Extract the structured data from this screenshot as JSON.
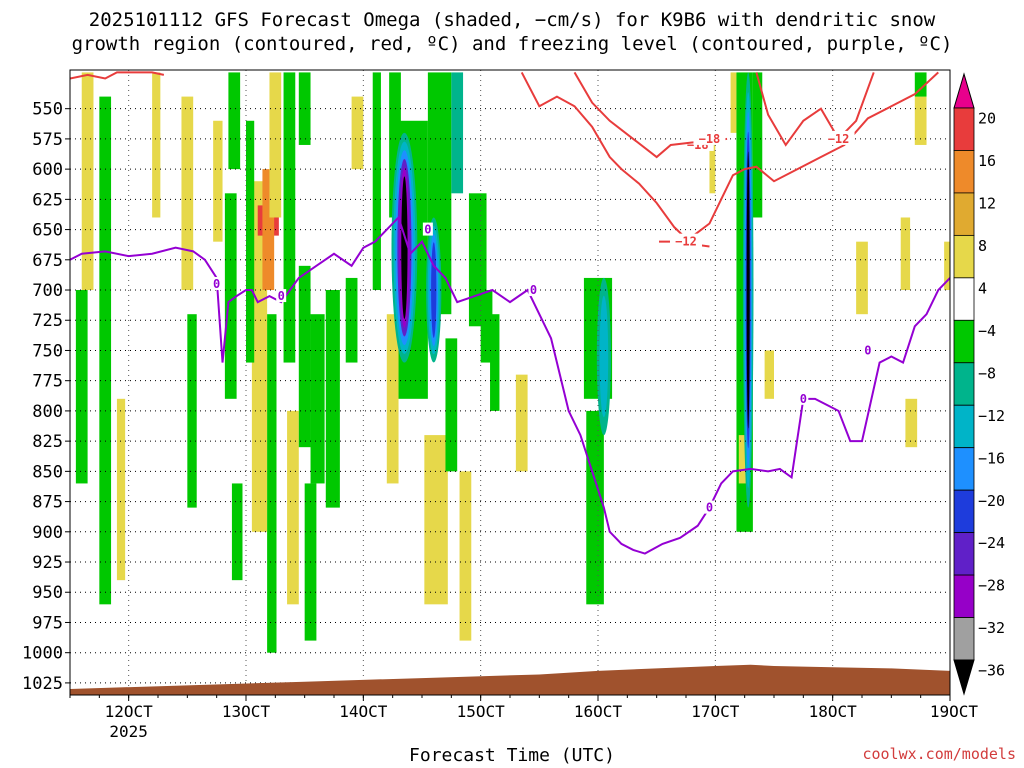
{
  "title_line1": "2025101112 GFS Forecast Omega (shaded, −cm/s) for K9B6 with dendritic snow",
  "title_line2": "growth region (contoured, red, ºC) and freezing level (contoured, purple, ºC)",
  "credit": "coolwx.com/models",
  "chart_data": {
    "type": "heatmap",
    "xlabel": "Forecast Time (UTC)",
    "x_ticks": [
      {
        "label": "12OCT",
        "sublabel": "2025",
        "t": 12
      },
      {
        "label": "13OCT",
        "t": 13
      },
      {
        "label": "14OCT",
        "t": 14
      },
      {
        "label": "15OCT",
        "t": 15
      },
      {
        "label": "16OCT",
        "t": 16
      },
      {
        "label": "17OCT",
        "t": 17
      },
      {
        "label": "18OCT",
        "t": 18
      },
      {
        "label": "19OCT",
        "t": 19
      }
    ],
    "xlim": [
      11.5,
      19
    ],
    "ylabel": "",
    "y_ticks": [
      550,
      575,
      600,
      625,
      650,
      675,
      700,
      725,
      750,
      775,
      800,
      825,
      850,
      875,
      900,
      925,
      950,
      975,
      1000,
      1025
    ],
    "ylim_hpa": [
      518,
      1035
    ],
    "colorbar": {
      "levels": [
        "20",
        "16",
        "12",
        "8",
        "4",
        "−4",
        "−8",
        "−12",
        "−16",
        "−20",
        "−24",
        "−28",
        "−32",
        "−36"
      ],
      "colors": [
        "#e8008c",
        "#e83c3c",
        "#ee8a2a",
        "#e0aa30",
        "#e6d84a",
        "#ffffff",
        "#00c800",
        "#00b48c",
        "#00b4c8",
        "#1e90ff",
        "#1e3cdc",
        "#6020c8",
        "#9600c8",
        "#a0a0a0",
        "#000000"
      ]
    },
    "omega_cells": [
      {
        "t0": 11.55,
        "t1": 11.65,
        "p0": 700,
        "p1": 860,
        "c": "#00c800"
      },
      {
        "t0": 11.6,
        "t1": 11.7,
        "p0": 520,
        "p1": 700,
        "c": "#e6d84a"
      },
      {
        "t0": 11.75,
        "t1": 11.85,
        "p0": 540,
        "p1": 960,
        "c": "#00c800"
      },
      {
        "t0": 11.9,
        "t1": 11.97,
        "p0": 790,
        "p1": 940,
        "c": "#e6d84a"
      },
      {
        "t0": 12.2,
        "t1": 12.27,
        "p0": 520,
        "p1": 640,
        "c": "#e6d84a"
      },
      {
        "t0": 12.45,
        "t1": 12.55,
        "p0": 540,
        "p1": 700,
        "c": "#e6d84a"
      },
      {
        "t0": 12.5,
        "t1": 12.58,
        "p0": 720,
        "p1": 880,
        "c": "#00c800"
      },
      {
        "t0": 12.72,
        "t1": 12.8,
        "p0": 560,
        "p1": 660,
        "c": "#e6d84a"
      },
      {
        "t0": 12.85,
        "t1": 12.95,
        "p0": 520,
        "p1": 600,
        "c": "#00c800"
      },
      {
        "t0": 12.82,
        "t1": 12.92,
        "p0": 620,
        "p1": 790,
        "c": "#00c800"
      },
      {
        "t0": 13.05,
        "t1": 13.18,
        "p0": 610,
        "p1": 900,
        "c": "#e6d84a"
      },
      {
        "t0": 12.88,
        "t1": 12.97,
        "p0": 860,
        "p1": 940,
        "c": "#00c800"
      },
      {
        "t0": 13.0,
        "t1": 13.07,
        "p0": 560,
        "p1": 760,
        "c": "#00c800"
      },
      {
        "t0": 13.1,
        "t1": 13.28,
        "p0": 630,
        "p1": 655,
        "c": "#e83c3c"
      },
      {
        "t0": 13.14,
        "t1": 13.24,
        "p0": 600,
        "p1": 700,
        "c": "#ee8a2a"
      },
      {
        "t0": 13.2,
        "t1": 13.3,
        "p0": 520,
        "p1": 640,
        "c": "#e6d84a"
      },
      {
        "t0": 13.18,
        "t1": 13.26,
        "p0": 720,
        "p1": 1000,
        "c": "#00c800"
      },
      {
        "t0": 13.32,
        "t1": 13.42,
        "p0": 520,
        "p1": 760,
        "c": "#00c800"
      },
      {
        "t0": 13.35,
        "t1": 13.45,
        "p0": 800,
        "p1": 960,
        "c": "#e6d84a"
      },
      {
        "t0": 13.45,
        "t1": 13.55,
        "p0": 520,
        "p1": 580,
        "c": "#00c800"
      },
      {
        "t0": 13.45,
        "t1": 13.55,
        "p0": 680,
        "p1": 830,
        "c": "#00c800"
      },
      {
        "t0": 13.55,
        "t1": 13.67,
        "p0": 720,
        "p1": 860,
        "c": "#00c800"
      },
      {
        "t0": 13.5,
        "t1": 13.6,
        "p0": 860,
        "p1": 990,
        "c": "#00c800"
      },
      {
        "t0": 13.68,
        "t1": 13.8,
        "p0": 700,
        "p1": 880,
        "c": "#00c800"
      },
      {
        "t0": 13.85,
        "t1": 13.95,
        "p0": 690,
        "p1": 760,
        "c": "#00c800"
      },
      {
        "t0": 13.9,
        "t1": 14.0,
        "p0": 540,
        "p1": 600,
        "c": "#e6d84a"
      },
      {
        "t0": 14.08,
        "t1": 14.15,
        "p0": 520,
        "p1": 700,
        "c": "#00c800"
      },
      {
        "t0": 14.2,
        "t1": 14.3,
        "p0": 720,
        "p1": 860,
        "c": "#e6d84a"
      },
      {
        "t0": 14.22,
        "t1": 14.32,
        "p0": 520,
        "p1": 640,
        "c": "#00c800"
      },
      {
        "t0": 14.3,
        "t1": 14.55,
        "p0": 560,
        "p1": 790,
        "c": "#00c800"
      },
      {
        "t0": 14.52,
        "t1": 14.72,
        "p0": 820,
        "p1": 960,
        "c": "#e6d84a"
      },
      {
        "t0": 14.55,
        "t1": 14.75,
        "p0": 520,
        "p1": 720,
        "c": "#00c800"
      },
      {
        "t0": 14.7,
        "t1": 14.8,
        "p0": 740,
        "p1": 850,
        "c": "#00c800"
      },
      {
        "t0": 14.75,
        "t1": 14.85,
        "p0": 520,
        "p1": 620,
        "c": "#00b48c"
      },
      {
        "t0": 14.82,
        "t1": 14.92,
        "p0": 850,
        "p1": 990,
        "c": "#e6d84a"
      },
      {
        "t0": 14.9,
        "t1": 15.05,
        "p0": 620,
        "p1": 730,
        "c": "#00c800"
      },
      {
        "t0": 15.0,
        "t1": 15.1,
        "p0": 700,
        "p1": 760,
        "c": "#00c800"
      },
      {
        "t0": 15.08,
        "t1": 15.16,
        "p0": 720,
        "p1": 800,
        "c": "#00c800"
      },
      {
        "t0": 15.3,
        "t1": 15.4,
        "p0": 770,
        "p1": 850,
        "c": "#e6d84a"
      },
      {
        "t0": 15.88,
        "t1": 16.12,
        "p0": 690,
        "p1": 790,
        "c": "#00c800"
      },
      {
        "t0": 15.9,
        "t1": 16.05,
        "p0": 800,
        "p1": 960,
        "c": "#00c800"
      },
      {
        "t0": 16.95,
        "t1": 17.0,
        "p0": 570,
        "p1": 620,
        "c": "#e6d84a"
      },
      {
        "t0": 17.13,
        "t1": 17.18,
        "p0": 520,
        "p1": 570,
        "c": "#e6d84a"
      },
      {
        "t0": 17.18,
        "t1": 17.32,
        "p0": 520,
        "p1": 900,
        "c": "#00c800"
      },
      {
        "t0": 17.32,
        "t1": 17.4,
        "p0": 520,
        "p1": 640,
        "c": "#00c800"
      },
      {
        "t0": 17.2,
        "t1": 17.26,
        "p0": 820,
        "p1": 860,
        "c": "#e6d84a"
      },
      {
        "t0": 17.42,
        "t1": 17.5,
        "p0": 750,
        "p1": 790,
        "c": "#e6d84a"
      },
      {
        "t0": 18.2,
        "t1": 18.3,
        "p0": 660,
        "p1": 720,
        "c": "#e6d84a"
      },
      {
        "t0": 18.58,
        "t1": 18.66,
        "p0": 640,
        "p1": 700,
        "c": "#e6d84a"
      },
      {
        "t0": 18.62,
        "t1": 18.72,
        "p0": 790,
        "p1": 830,
        "c": "#e6d84a"
      },
      {
        "t0": 18.7,
        "t1": 18.8,
        "p0": 540,
        "p1": 580,
        "c": "#e6d84a"
      },
      {
        "t0": 18.95,
        "t1": 19.0,
        "p0": 660,
        "p1": 700,
        "c": "#e6d84a"
      },
      {
        "t0": 18.7,
        "t1": 18.8,
        "p0": 520,
        "p1": 540,
        "c": "#00c800"
      }
    ],
    "omega_cores": [
      {
        "t": 14.35,
        "p0": 570,
        "p1": 760,
        "w": 0.22,
        "colors": [
          "#00b48c",
          "#00b4c8",
          "#1e90ff",
          "#6020c8",
          "#9600c8",
          "#000000"
        ]
      },
      {
        "t": 14.6,
        "p0": 640,
        "p1": 760,
        "w": 0.13,
        "colors": [
          "#00b48c",
          "#00b4c8",
          "#1e90ff",
          "#1e3cdc"
        ]
      },
      {
        "t": 16.05,
        "p0": 690,
        "p1": 820,
        "w": 0.12,
        "colors": [
          "#00b48c",
          "#00b4c8"
        ]
      },
      {
        "t": 17.28,
        "p0": 520,
        "p1": 880,
        "w": 0.09,
        "colors": [
          "#00b48c",
          "#00b4c8",
          "#1e90ff",
          "#1e3cdc",
          "#000000"
        ]
      }
    ],
    "red_contours": [
      {
        "label": "−18",
        "label_at": [
          16.85,
          580
        ],
        "t": [
          15.35,
          15.5,
          15.65,
          15.8,
          15.95,
          16.1,
          16.2,
          16.35,
          16.5,
          16.65,
          16.8,
          16.95
        ],
        "p": [
          520,
          548,
          540,
          548,
          565,
          590,
          600,
          612,
          628,
          648,
          662,
          664
        ]
      },
      {
        "label": "−18",
        "label_at": [
          16.95,
          575
        ],
        "t": [
          15.8,
          15.95,
          16.1,
          16.3,
          16.5,
          16.62,
          16.8,
          16.95,
          17.1
        ],
        "p": [
          520,
          545,
          560,
          575,
          590,
          580,
          578,
          577,
          575
        ]
      },
      {
        "label": "−12",
        "label_at": [
          16.75,
          660
        ],
        "t": [
          16.52,
          16.65,
          16.8,
          16.95,
          17.05,
          17.15,
          17.25,
          17.35,
          17.5,
          17.7,
          17.9,
          18.1,
          18.3,
          18.5,
          18.7,
          18.9
        ],
        "p": [
          660,
          660,
          656,
          645,
          625,
          605,
          600,
          598,
          610,
          600,
          590,
          580,
          558,
          548,
          538,
          520
        ]
      },
      {
        "label": "−12",
        "label_at": [
          18.05,
          575
        ],
        "t": [
          17.35,
          17.45,
          17.6,
          17.75,
          17.9,
          18.05,
          18.2,
          18.35
        ],
        "p": [
          520,
          555,
          580,
          560,
          550,
          575,
          560,
          520
        ]
      },
      {
        "label": "",
        "label_at": null,
        "t": [
          11.5,
          11.65,
          11.8,
          11.9,
          12.2,
          12.3
        ],
        "p": [
          525,
          522,
          525,
          520,
          520,
          522
        ]
      }
    ],
    "freezing_level": {
      "label": "0",
      "label_points": [
        [
          12.75,
          695
        ],
        [
          13.3,
          705
        ],
        [
          14.55,
          650
        ],
        [
          15.45,
          700
        ],
        [
          16.95,
          880
        ],
        [
          17.75,
          790
        ],
        [
          18.3,
          750
        ]
      ],
      "t": [
        11.5,
        11.6,
        11.8,
        12.0,
        12.2,
        12.4,
        12.55,
        12.65,
        12.75,
        12.8,
        12.85,
        12.92,
        13.0,
        13.05,
        13.1,
        13.2,
        13.3,
        13.45,
        13.6,
        13.75,
        13.9,
        14.0,
        14.1,
        14.2,
        14.3,
        14.4,
        14.5,
        14.6,
        14.7,
        14.8,
        14.95,
        15.1,
        15.25,
        15.4,
        15.5,
        15.6,
        15.7,
        15.75,
        15.85,
        15.95,
        16.05,
        16.1,
        16.15,
        16.2,
        16.3,
        16.4,
        16.55,
        16.7,
        16.85,
        16.95,
        17.05,
        17.15,
        17.3,
        17.45,
        17.55,
        17.65,
        17.75,
        17.85,
        17.95,
        18.05,
        18.15,
        18.25,
        18.4,
        18.5,
        18.6,
        18.7,
        18.8,
        18.9,
        19.0
      ],
      "p": [
        675,
        670,
        668,
        672,
        670,
        665,
        668,
        675,
        690,
        760,
        710,
        705,
        700,
        700,
        710,
        705,
        710,
        690,
        680,
        670,
        680,
        665,
        660,
        650,
        640,
        670,
        660,
        680,
        690,
        710,
        705,
        700,
        710,
        700,
        720,
        740,
        780,
        800,
        820,
        850,
        880,
        900,
        905,
        910,
        915,
        918,
        910,
        905,
        895,
        880,
        860,
        850,
        848,
        850,
        848,
        855,
        790,
        790,
        795,
        800,
        825,
        825,
        760,
        755,
        760,
        730,
        720,
        700,
        690
      ]
    },
    "terrain": {
      "color": "#a0522d",
      "t": [
        11.5,
        12.5,
        13.5,
        14.5,
        15.5,
        16.0,
        16.5,
        17.0,
        17.3,
        17.5,
        18.0,
        18.5,
        19.0
      ],
      "p": [
        1030,
        1027,
        1024,
        1021,
        1018,
        1015,
        1013,
        1011,
        1010,
        1011,
        1012,
        1013,
        1015
      ]
    }
  }
}
